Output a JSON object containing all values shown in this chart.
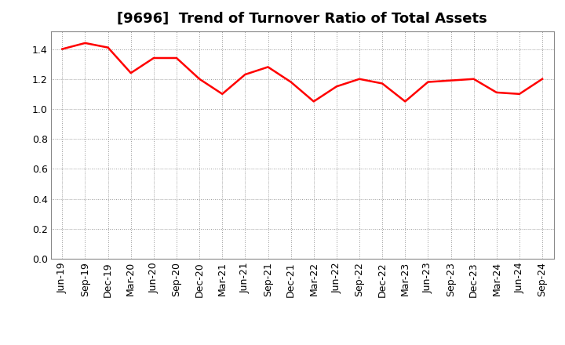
{
  "title": "[9696]  Trend of Turnover Ratio of Total Assets",
  "x_labels": [
    "Jun-19",
    "Sep-19",
    "Dec-19",
    "Mar-20",
    "Jun-20",
    "Sep-20",
    "Dec-20",
    "Mar-21",
    "Jun-21",
    "Sep-21",
    "Dec-21",
    "Mar-22",
    "Jun-22",
    "Sep-22",
    "Dec-22",
    "Mar-23",
    "Jun-23",
    "Sep-23",
    "Dec-23",
    "Mar-24",
    "Jun-24",
    "Sep-24"
  ],
  "y_values": [
    1.4,
    1.44,
    1.41,
    1.24,
    1.34,
    1.34,
    1.2,
    1.1,
    1.23,
    1.28,
    1.18,
    1.05,
    1.15,
    1.2,
    1.17,
    1.05,
    1.18,
    1.19,
    1.2,
    1.11,
    1.1,
    1.2
  ],
  "line_color": "#ff0000",
  "line_width": 1.8,
  "ylim": [
    0.0,
    1.52
  ],
  "yticks": [
    0.0,
    0.2,
    0.4,
    0.6,
    0.8,
    1.0,
    1.2,
    1.4
  ],
  "background_color": "#ffffff",
  "grid_color": "#999999",
  "title_fontsize": 13,
  "tick_fontsize": 9
}
